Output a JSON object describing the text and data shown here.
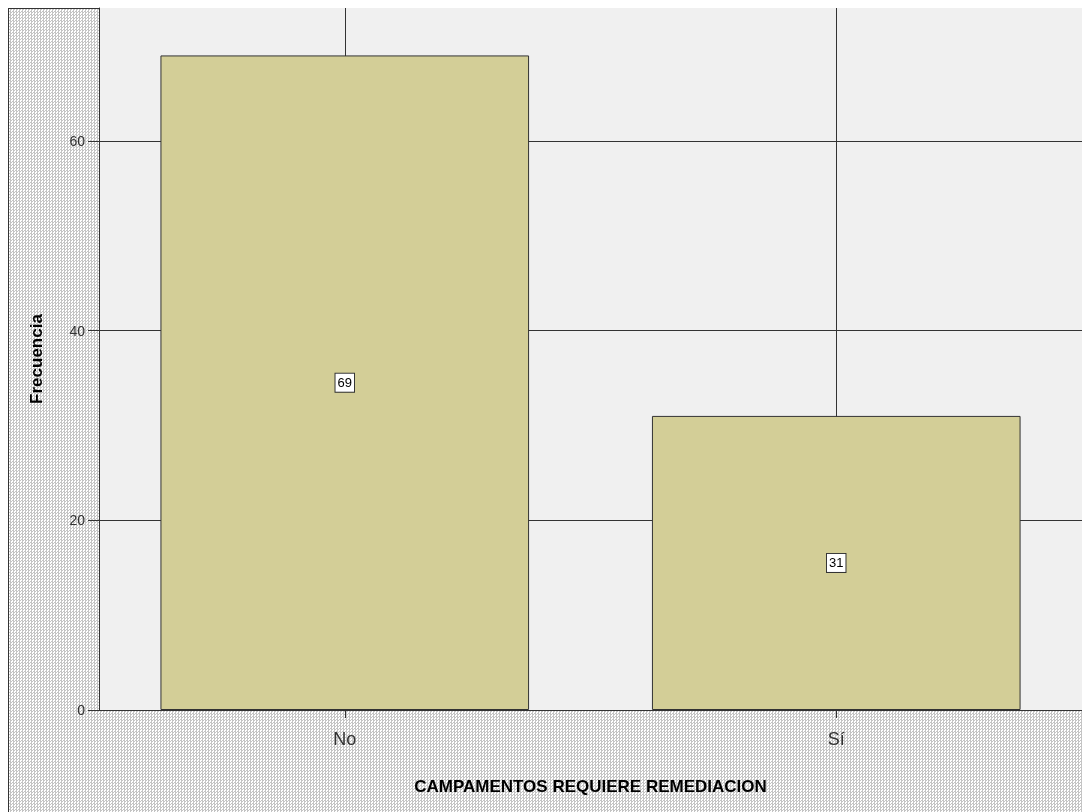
{
  "chart_data": {
    "type": "bar",
    "categories": [
      "No",
      "Sí"
    ],
    "values": [
      69,
      31
    ],
    "color": "#d3ce97",
    "xlabel": "CAMPAMENTOS REQUIERE REMEDIACION",
    "ylabel": "Frecuencia",
    "ylim": [
      0,
      74
    ],
    "yticks": [
      0,
      20,
      40,
      60
    ],
    "grid": true,
    "data_labels": true
  }
}
